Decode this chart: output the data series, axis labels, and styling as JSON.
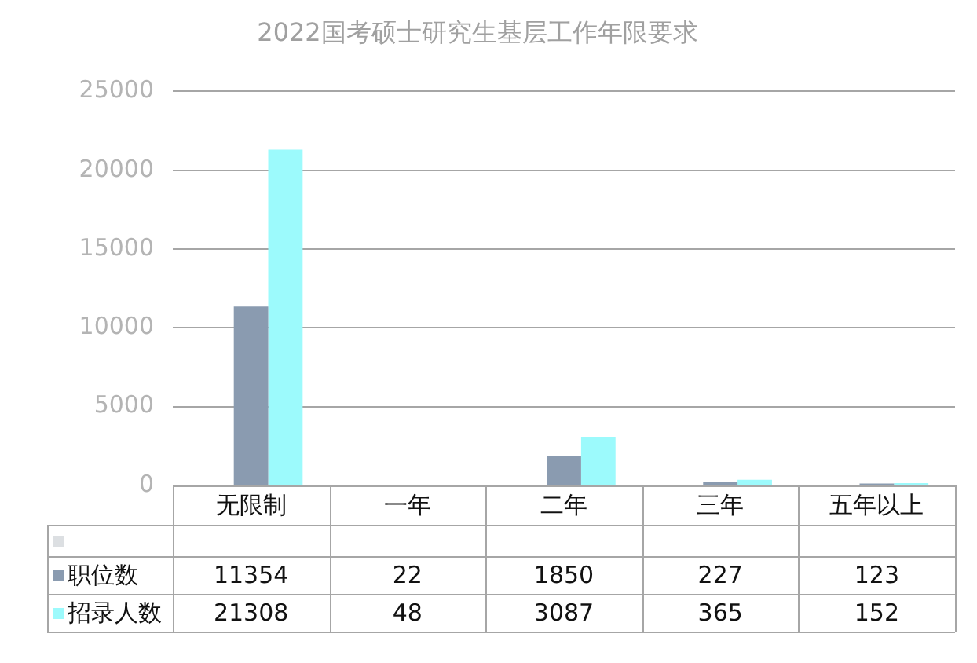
{
  "chart_data": {
    "type": "bar",
    "title": "2022国考硕士研究生基层工作年限要求",
    "categories": [
      "无限制",
      "一年",
      "二年",
      "三年",
      "五年以上"
    ],
    "series": [
      {
        "color": "#dcdfe2",
        "values": [
          null,
          null,
          null,
          null,
          null
        ]
      },
      {
        "name": "职位数",
        "color": "#8a9bb0",
        "values": [
          11354,
          22,
          1850,
          227,
          123
        ]
      },
      {
        "name": "招录人数",
        "color": "#9cfafc",
        "values": [
          21308,
          48,
          3087,
          365,
          152
        ]
      }
    ],
    "ylim": [
      0,
      25000
    ],
    "yticks": [
      0,
      5000,
      10000,
      15000,
      20000,
      25000
    ],
    "grid": "y",
    "legend": "bottom",
    "data_labels": true
  }
}
